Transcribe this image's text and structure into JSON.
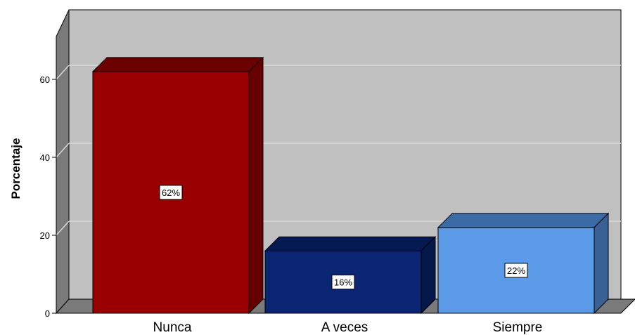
{
  "chart_data": {
    "type": "bar",
    "style": "3d",
    "title": "",
    "xlabel": "",
    "ylabel": "Porcentaje",
    "ylim": [
      0,
      72
    ],
    "yticks": [
      0,
      20,
      40,
      60
    ],
    "grid": true,
    "categories": [
      "Nunca",
      "A veces",
      "Siempre"
    ],
    "values": [
      62,
      16,
      22
    ],
    "data_labels": [
      "62%",
      "16%",
      "22%"
    ],
    "colors": {
      "front": [
        "#990000",
        "#0a2673",
        "#5b9ae6"
      ],
      "top": [
        "#6b0000",
        "#061a52",
        "#3a6ba6"
      ],
      "side": [
        "#660000",
        "#05184a",
        "#3a6196"
      ],
      "plot_back": "#c0c0c0",
      "floor": "#7a7a7a",
      "left_wall": "#7a7a7a",
      "gridline": "#d8d8d8"
    }
  }
}
